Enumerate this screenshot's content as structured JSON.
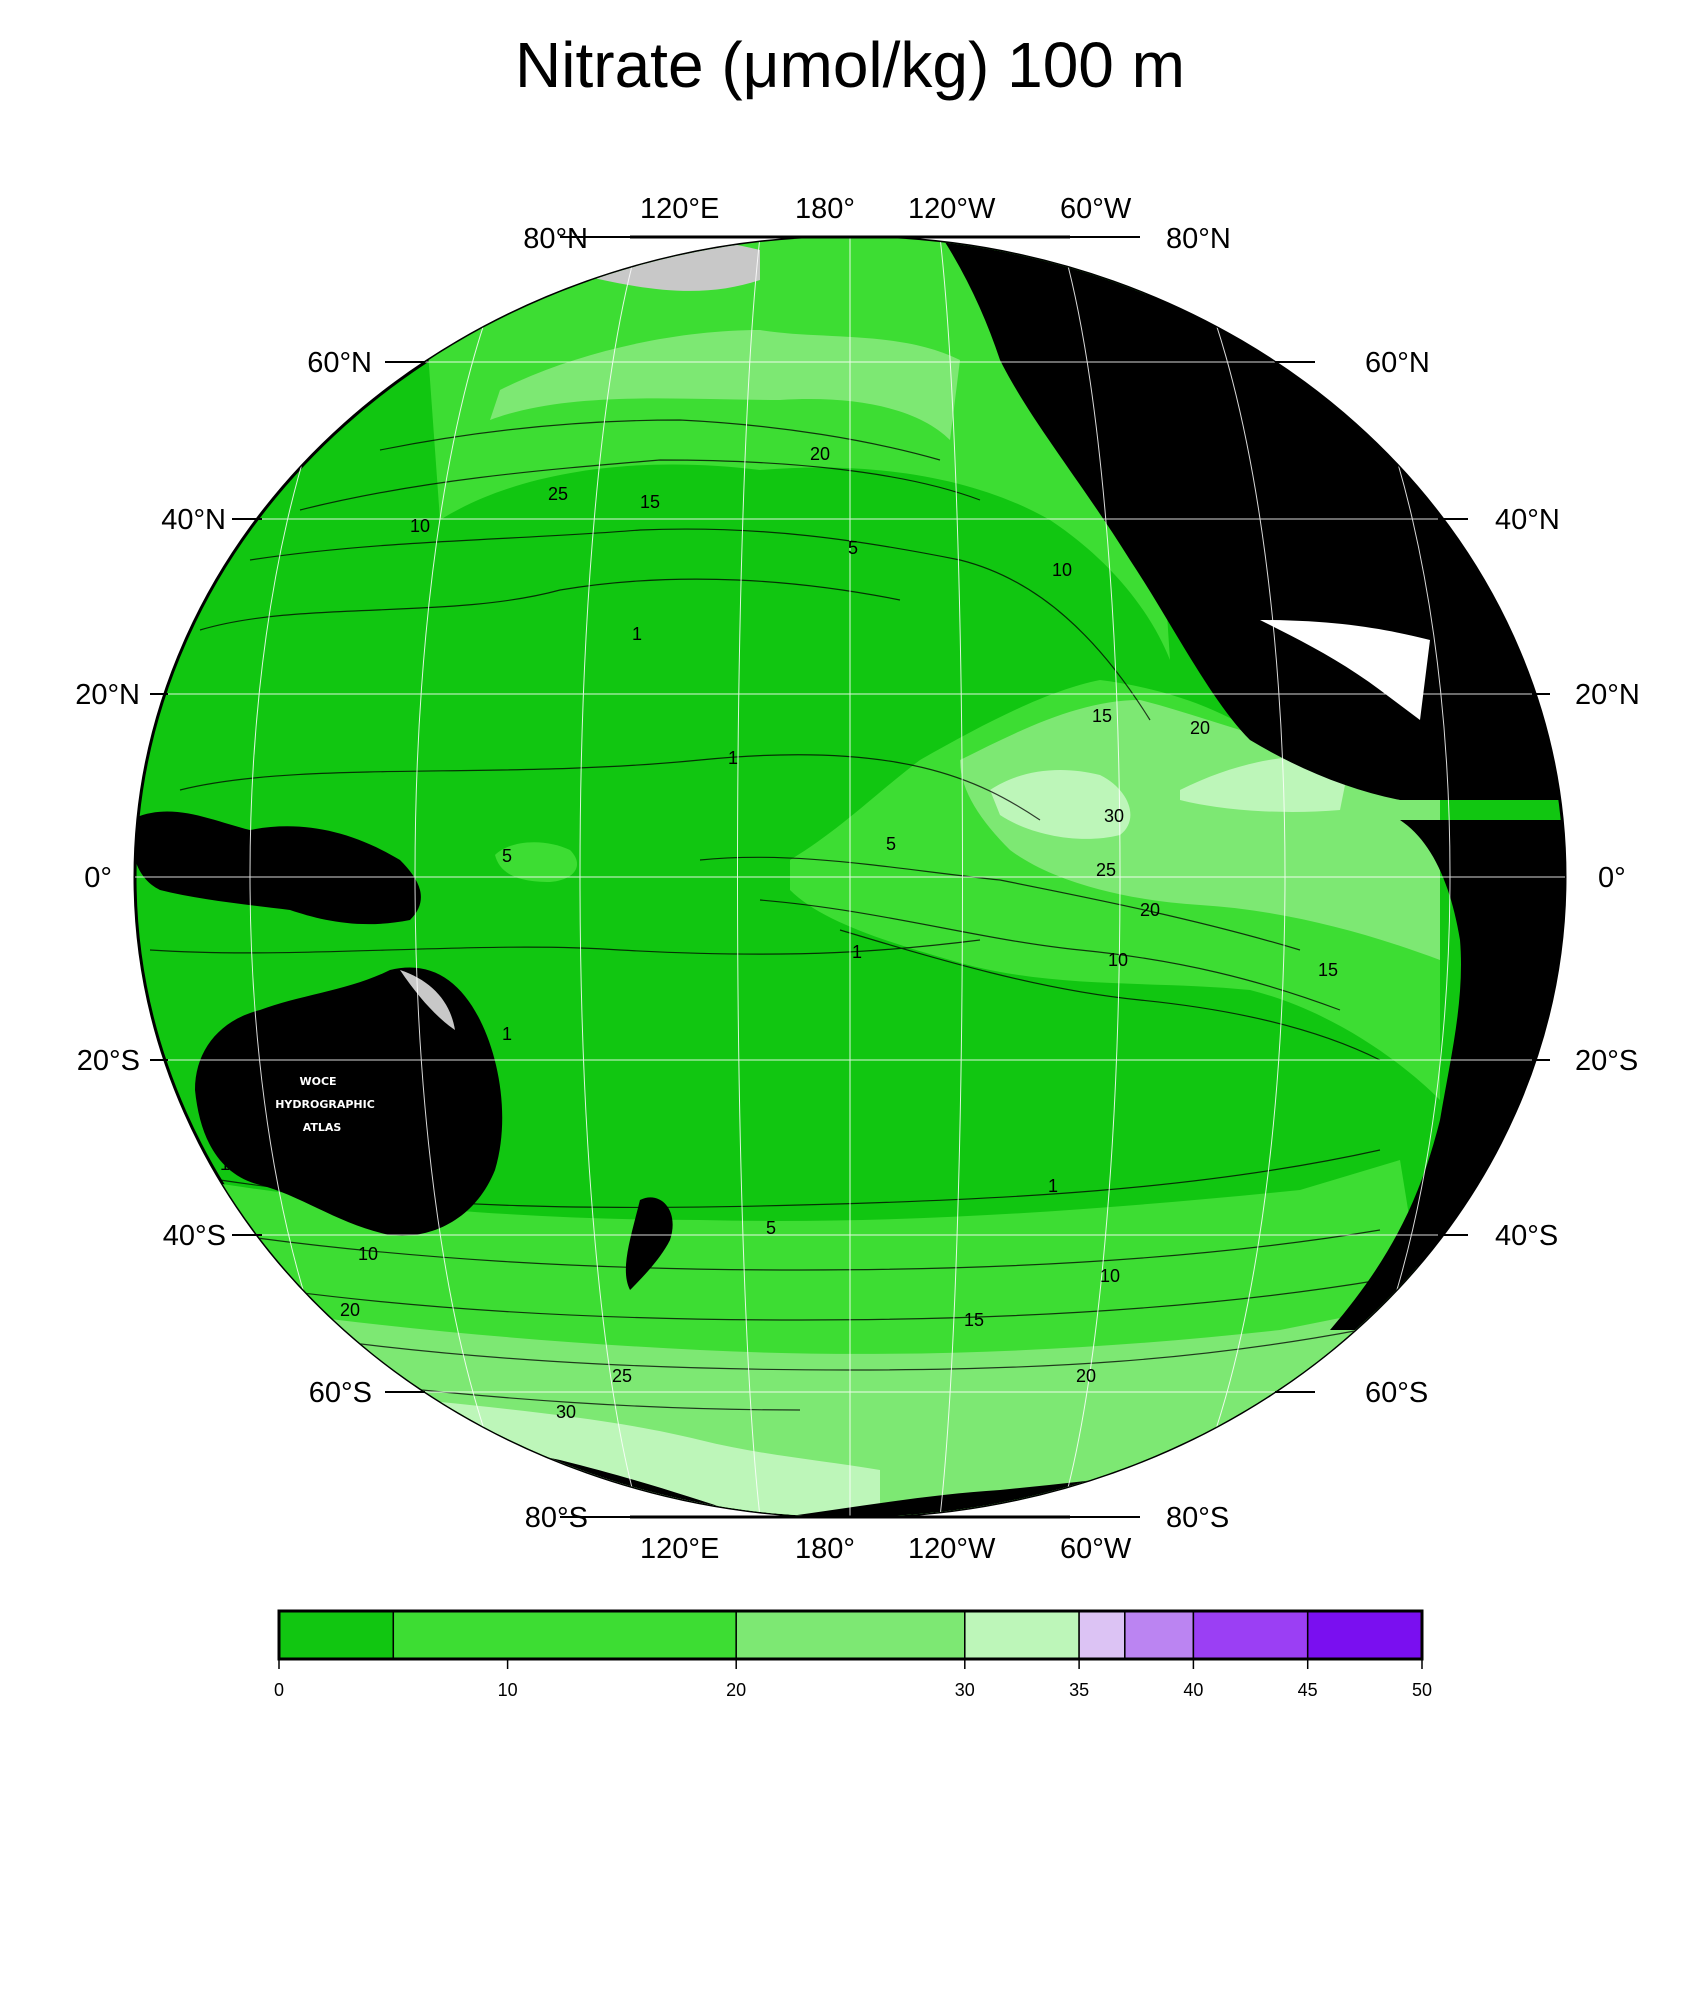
{
  "title": "Nitrate (μmol/kg) 100 m",
  "map": {
    "longitude_labels": [
      "120°E",
      "180°",
      "120°W",
      "60°W"
    ],
    "latitude_labels": [
      "80°N",
      "60°N",
      "40°N",
      "20°N",
      "0°",
      "20°S",
      "40°S",
      "60°S",
      "80°S"
    ],
    "contour_labels": [
      "1",
      "5",
      "10",
      "15",
      "20",
      "25",
      "30"
    ],
    "logo": [
      "WOCE",
      "HYDROGRAPHIC",
      "ATLAS"
    ],
    "colors": {
      "land": "#000000",
      "ice_shelf": "#c8c8c8",
      "grid": "#ffffff",
      "level_0_5": "#11c611",
      "level_5_20": "#3ddd33",
      "level_20_30": "#7de873",
      "level_30_35": "#bdf6b9"
    }
  },
  "colorbar": {
    "ticks": [
      "0",
      "10",
      "20",
      "30",
      "35",
      "40",
      "45",
      "50"
    ],
    "bins": [
      {
        "from": 0,
        "to": 5,
        "color": "#11c611"
      },
      {
        "from": 5,
        "to": 20,
        "color": "#3ddd33"
      },
      {
        "from": 20,
        "to": 30,
        "color": "#7de873"
      },
      {
        "from": 30,
        "to": 35,
        "color": "#bdf6b9"
      },
      {
        "from": 35,
        "to": 37,
        "color": "#dcc3f4"
      },
      {
        "from": 37,
        "to": 40,
        "color": "#bb84f2"
      },
      {
        "from": 40,
        "to": 45,
        "color": "#9b3ff4"
      },
      {
        "from": 45,
        "to": 50,
        "color": "#7a0ff0"
      }
    ]
  }
}
